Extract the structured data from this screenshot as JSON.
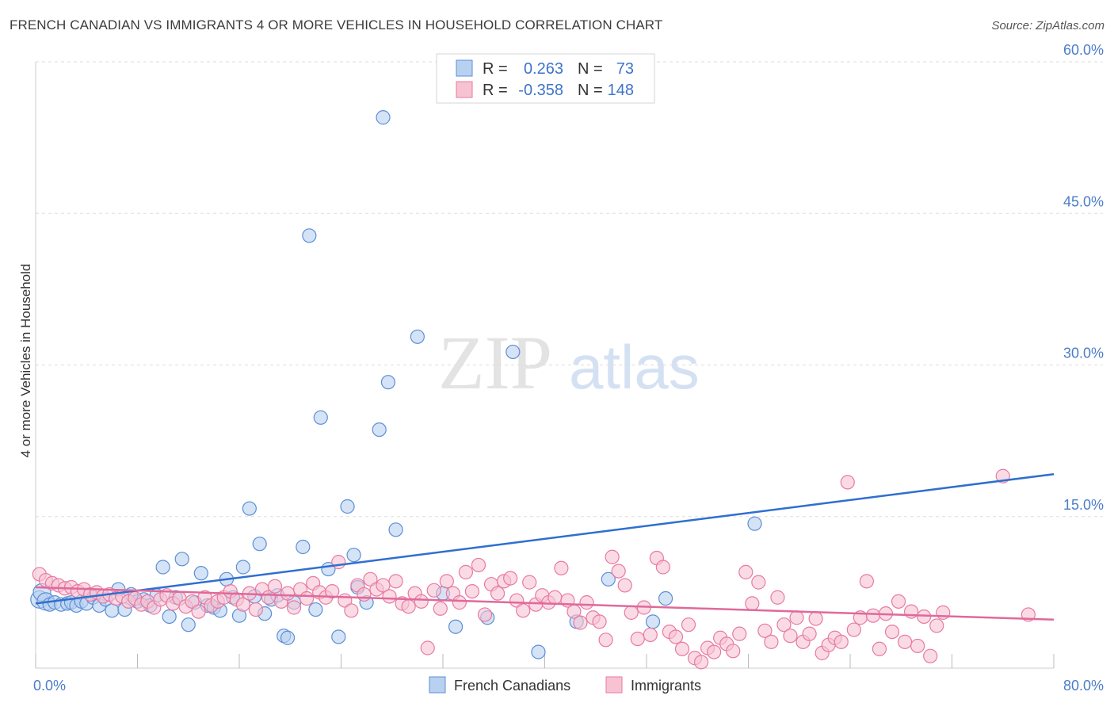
{
  "header": {
    "title": "FRENCH CANADIAN VS IMMIGRANTS 4 OR MORE VEHICLES IN HOUSEHOLD CORRELATION CHART",
    "source": "Source: ZipAtlas.com"
  },
  "watermark": {
    "zip": "ZIP",
    "atlas": "atlas"
  },
  "colors": {
    "blue": "#5b8fd6",
    "blue_fill": "#b9d1f0",
    "blue_line": "#2f6fcf",
    "pink": "#e87aa0",
    "pink_fill": "#f7c3d3",
    "pink_line": "#e0699a",
    "grid": "#dddddd",
    "axis_label": "#4a7cc9"
  },
  "chart_data": {
    "type": "scatter",
    "title": "FRENCH CANADIAN VS IMMIGRANTS 4 OR MORE VEHICLES IN HOUSEHOLD CORRELATION CHART",
    "ylabel": "4 or more Vehicles in Household",
    "xlabel": "",
    "xlim": [
      0,
      80
    ],
    "ylim": [
      0,
      60
    ],
    "x_tick_labels": [
      "0.0%",
      "80.0%"
    ],
    "y_ticks": [
      15,
      30,
      45,
      60
    ],
    "y_tick_labels": [
      "15.0%",
      "30.0%",
      "45.0%",
      "60.0%"
    ],
    "grid": true,
    "legend": {
      "placement": "top-center",
      "entries": [
        {
          "r_label": "R =",
          "r_value": "0.263",
          "n_label": "N =",
          "n_value": "73"
        },
        {
          "r_label": "R =",
          "r_value": "-0.358",
          "n_label": "N =",
          "n_value": "148"
        }
      ]
    },
    "series": [
      {
        "name": "French Canadians",
        "color": "#5b8fd6",
        "trend": {
          "x": [
            0,
            80
          ],
          "y": [
            6.4,
            19.2
          ]
        },
        "points": [
          [
            0.3,
            6.8
          ],
          [
            0.5,
            7.5
          ],
          [
            0.8,
            6.6
          ],
          [
            1.1,
            6.3
          ],
          [
            1.5,
            6.5
          ],
          [
            2.0,
            6.3
          ],
          [
            2.5,
            6.4
          ],
          [
            2.8,
            6.5
          ],
          [
            3.2,
            6.2
          ],
          [
            3.6,
            6.6
          ],
          [
            4.0,
            6.4
          ],
          [
            4.5,
            7.0
          ],
          [
            5.0,
            6.2
          ],
          [
            5.5,
            6.8
          ],
          [
            6.0,
            5.7
          ],
          [
            6.5,
            7.8
          ],
          [
            7.0,
            5.8
          ],
          [
            7.5,
            7.3
          ],
          [
            8.0,
            6.6
          ],
          [
            8.5,
            6.8
          ],
          [
            9.0,
            6.2
          ],
          [
            9.5,
            7.2
          ],
          [
            10.0,
            10.0
          ],
          [
            10.5,
            5.1
          ],
          [
            11.0,
            7.0
          ],
          [
            11.5,
            10.8
          ],
          [
            12.0,
            4.3
          ],
          [
            12.5,
            6.5
          ],
          [
            13.0,
            9.4
          ],
          [
            13.5,
            6.2
          ],
          [
            14.0,
            6.0
          ],
          [
            14.5,
            5.7
          ],
          [
            15.0,
            8.8
          ],
          [
            15.5,
            7.0
          ],
          [
            16.0,
            5.2
          ],
          [
            16.3,
            10.0
          ],
          [
            16.8,
            15.8
          ],
          [
            17.2,
            7.1
          ],
          [
            17.6,
            12.3
          ],
          [
            18.0,
            5.4
          ],
          [
            18.5,
            6.8
          ],
          [
            19.0,
            7.2
          ],
          [
            19.5,
            3.2
          ],
          [
            19.8,
            3.0
          ],
          [
            20.3,
            6.5
          ],
          [
            21.0,
            12.0
          ],
          [
            21.5,
            42.8
          ],
          [
            22.0,
            5.8
          ],
          [
            22.4,
            24.8
          ],
          [
            23.0,
            9.8
          ],
          [
            23.8,
            3.1
          ],
          [
            24.5,
            16.0
          ],
          [
            25.0,
            11.2
          ],
          [
            25.3,
            8.0
          ],
          [
            26.0,
            6.5
          ],
          [
            27.0,
            23.6
          ],
          [
            27.3,
            54.5
          ],
          [
            27.7,
            28.3
          ],
          [
            28.3,
            13.7
          ],
          [
            30.0,
            32.8
          ],
          [
            32.0,
            7.4
          ],
          [
            33.0,
            4.1
          ],
          [
            35.5,
            5.0
          ],
          [
            37.5,
            31.3
          ],
          [
            39.5,
            1.6
          ],
          [
            42.5,
            4.6
          ],
          [
            45.0,
            8.8
          ],
          [
            56.5,
            14.3
          ],
          [
            48.5,
            4.6
          ],
          [
            49.5,
            6.9
          ]
        ]
      },
      {
        "name": "Immigrants",
        "color": "#e87aa0",
        "trend": {
          "x": [
            0,
            80
          ],
          "y": [
            8.0,
            4.8
          ]
        },
        "points": [
          [
            0.3,
            9.3
          ],
          [
            0.8,
            8.7
          ],
          [
            1.3,
            8.4
          ],
          [
            1.8,
            8.2
          ],
          [
            2.3,
            7.9
          ],
          [
            2.8,
            8.0
          ],
          [
            3.3,
            7.6
          ],
          [
            3.8,
            7.8
          ],
          [
            4.3,
            7.3
          ],
          [
            4.8,
            7.5
          ],
          [
            5.3,
            7.1
          ],
          [
            5.8,
            7.3
          ],
          [
            6.3,
            6.9
          ],
          [
            6.8,
            7.1
          ],
          [
            7.3,
            6.6
          ],
          [
            7.8,
            6.9
          ],
          [
            8.3,
            6.3
          ],
          [
            8.8,
            6.6
          ],
          [
            9.3,
            6.0
          ],
          [
            9.8,
            6.8
          ],
          [
            10.3,
            7.2
          ],
          [
            10.8,
            6.4
          ],
          [
            11.3,
            6.9
          ],
          [
            11.8,
            6.1
          ],
          [
            12.3,
            6.6
          ],
          [
            12.8,
            5.6
          ],
          [
            13.3,
            7.0
          ],
          [
            13.8,
            6.2
          ],
          [
            14.3,
            6.6
          ],
          [
            14.8,
            7.0
          ],
          [
            15.3,
            7.6
          ],
          [
            15.8,
            6.8
          ],
          [
            16.3,
            6.3
          ],
          [
            16.8,
            7.4
          ],
          [
            17.3,
            5.8
          ],
          [
            17.8,
            7.8
          ],
          [
            18.3,
            7.0
          ],
          [
            18.8,
            8.1
          ],
          [
            19.3,
            6.6
          ],
          [
            19.8,
            7.4
          ],
          [
            20.3,
            6.0
          ],
          [
            20.8,
            7.8
          ],
          [
            21.3,
            6.9
          ],
          [
            21.8,
            8.4
          ],
          [
            22.3,
            7.5
          ],
          [
            22.8,
            7.0
          ],
          [
            23.3,
            7.6
          ],
          [
            23.8,
            10.5
          ],
          [
            24.3,
            6.7
          ],
          [
            24.8,
            5.7
          ],
          [
            25.3,
            8.2
          ],
          [
            25.8,
            7.3
          ],
          [
            26.3,
            8.8
          ],
          [
            26.8,
            7.8
          ],
          [
            27.3,
            8.2
          ],
          [
            27.8,
            7.1
          ],
          [
            28.3,
            8.6
          ],
          [
            28.8,
            6.4
          ],
          [
            29.3,
            6.1
          ],
          [
            29.8,
            7.4
          ],
          [
            30.3,
            6.6
          ],
          [
            30.8,
            2.0
          ],
          [
            31.3,
            7.7
          ],
          [
            31.8,
            5.9
          ],
          [
            32.3,
            8.6
          ],
          [
            32.8,
            7.4
          ],
          [
            33.3,
            6.5
          ],
          [
            33.8,
            9.5
          ],
          [
            34.3,
            7.6
          ],
          [
            34.8,
            10.2
          ],
          [
            35.3,
            5.3
          ],
          [
            35.8,
            8.3
          ],
          [
            36.3,
            7.4
          ],
          [
            36.8,
            8.6
          ],
          [
            37.3,
            8.9
          ],
          [
            37.8,
            6.7
          ],
          [
            38.3,
            5.7
          ],
          [
            38.8,
            8.5
          ],
          [
            39.3,
            6.3
          ],
          [
            39.8,
            7.2
          ],
          [
            40.3,
            6.5
          ],
          [
            40.8,
            7.0
          ],
          [
            41.3,
            9.9
          ],
          [
            41.8,
            6.7
          ],
          [
            42.3,
            5.6
          ],
          [
            42.8,
            4.5
          ],
          [
            43.3,
            6.5
          ],
          [
            43.8,
            5.0
          ],
          [
            44.3,
            4.6
          ],
          [
            44.8,
            2.8
          ],
          [
            45.3,
            11.0
          ],
          [
            45.8,
            9.6
          ],
          [
            46.3,
            8.2
          ],
          [
            46.8,
            5.5
          ],
          [
            47.3,
            2.9
          ],
          [
            47.8,
            6.0
          ],
          [
            48.3,
            3.3
          ],
          [
            48.8,
            10.9
          ],
          [
            49.3,
            10.0
          ],
          [
            49.8,
            3.6
          ],
          [
            50.3,
            3.1
          ],
          [
            50.8,
            1.9
          ],
          [
            51.3,
            4.3
          ],
          [
            51.8,
            1.0
          ],
          [
            52.3,
            0.6
          ],
          [
            52.8,
            2.0
          ],
          [
            53.3,
            1.6
          ],
          [
            53.8,
            3.0
          ],
          [
            54.3,
            2.4
          ],
          [
            54.8,
            1.7
          ],
          [
            55.3,
            3.4
          ],
          [
            55.8,
            9.5
          ],
          [
            56.3,
            6.4
          ],
          [
            56.8,
            8.5
          ],
          [
            57.3,
            3.7
          ],
          [
            57.8,
            2.6
          ],
          [
            58.3,
            7.0
          ],
          [
            58.8,
            4.3
          ],
          [
            59.3,
            3.2
          ],
          [
            59.8,
            5.0
          ],
          [
            60.3,
            2.6
          ],
          [
            60.8,
            3.4
          ],
          [
            61.3,
            4.9
          ],
          [
            61.8,
            1.5
          ],
          [
            62.3,
            2.3
          ],
          [
            62.8,
            3.0
          ],
          [
            63.3,
            2.6
          ],
          [
            63.8,
            18.4
          ],
          [
            64.3,
            3.8
          ],
          [
            64.8,
            5.0
          ],
          [
            65.3,
            8.6
          ],
          [
            65.8,
            5.2
          ],
          [
            66.3,
            1.9
          ],
          [
            66.8,
            5.4
          ],
          [
            67.3,
            3.6
          ],
          [
            67.8,
            6.6
          ],
          [
            68.3,
            2.6
          ],
          [
            68.8,
            5.6
          ],
          [
            69.3,
            2.2
          ],
          [
            69.8,
            5.1
          ],
          [
            70.3,
            1.2
          ],
          [
            70.8,
            4.2
          ],
          [
            71.3,
            5.5
          ],
          [
            76.0,
            19.0
          ],
          [
            78.0,
            5.3
          ]
        ]
      }
    ]
  },
  "bottom_legend": [
    {
      "label": "French Canadians"
    },
    {
      "label": "Immigrants"
    }
  ]
}
